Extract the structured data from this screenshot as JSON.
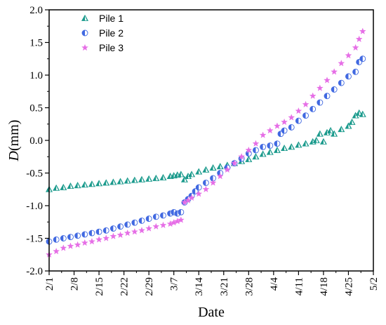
{
  "chart_data": {
    "type": "scatter",
    "title": "",
    "xlabel": "Date",
    "ylabel_italic": "D",
    "ylabel_rest": "(mm)",
    "x_tick_labels": [
      "2/1",
      "2/8",
      "2/15",
      "2/22",
      "2/29",
      "3/7",
      "3/14",
      "3/21",
      "3/28",
      "4/4",
      "4/11",
      "4/18",
      "4/25",
      "5/2"
    ],
    "x_tick_days": [
      0,
      7,
      14,
      21,
      28,
      35,
      42,
      49,
      56,
      63,
      70,
      77,
      84,
      91
    ],
    "xlim_days": [
      0,
      91
    ],
    "ylim": [
      -2.0,
      2.0
    ],
    "y_ticks": [
      "-2.0",
      "-1.5",
      "-1.0",
      "-0.5",
      "0.0",
      "0.5",
      "1.0",
      "1.5",
      "2.0"
    ],
    "legend_position": "top-left",
    "grid": false,
    "series": [
      {
        "name": "Pile 1",
        "marker": "triangle",
        "color": "#1a9a8c",
        "days": [
          0,
          2,
          4,
          6,
          8,
          10,
          12,
          14,
          16,
          18,
          20,
          22,
          24,
          26,
          28,
          30,
          32,
          34,
          35,
          36,
          37,
          38,
          39,
          40,
          42,
          44,
          46,
          48,
          50,
          52,
          54,
          56,
          58,
          60,
          62,
          64,
          66,
          68,
          70,
          72,
          74,
          75,
          76,
          77,
          78,
          79,
          80,
          82,
          84,
          85,
          86,
          87,
          88
        ],
        "values": [
          -0.75,
          -0.73,
          -0.72,
          -0.7,
          -0.69,
          -0.68,
          -0.67,
          -0.66,
          -0.65,
          -0.64,
          -0.63,
          -0.62,
          -0.61,
          -0.6,
          -0.59,
          -0.58,
          -0.57,
          -0.55,
          -0.54,
          -0.53,
          -0.52,
          -0.6,
          -0.55,
          -0.52,
          -0.48,
          -0.45,
          -0.42,
          -0.4,
          -0.38,
          -0.35,
          -0.32,
          -0.29,
          -0.25,
          -0.21,
          -0.18,
          -0.15,
          -0.12,
          -0.1,
          -0.07,
          -0.05,
          -0.02,
          0.0,
          0.1,
          -0.02,
          0.12,
          0.15,
          0.1,
          0.17,
          0.22,
          0.28,
          0.38,
          0.42,
          0.4
        ]
      },
      {
        "name": "Pile 2",
        "marker": "circle",
        "color": "#4169e1",
        "days": [
          0,
          2,
          4,
          6,
          8,
          10,
          12,
          14,
          16,
          18,
          20,
          22,
          24,
          26,
          28,
          30,
          32,
          34,
          35,
          36,
          37,
          38,
          39,
          40,
          41,
          42,
          44,
          46,
          48,
          50,
          52,
          54,
          56,
          58,
          60,
          62,
          64,
          65,
          66,
          68,
          70,
          72,
          74,
          76,
          78,
          80,
          82,
          84,
          86,
          87,
          88
        ],
        "values": [
          -1.55,
          -1.52,
          -1.5,
          -1.48,
          -1.46,
          -1.44,
          -1.42,
          -1.4,
          -1.38,
          -1.35,
          -1.32,
          -1.29,
          -1.26,
          -1.23,
          -1.2,
          -1.17,
          -1.15,
          -1.12,
          -1.1,
          -1.12,
          -1.1,
          -0.95,
          -0.9,
          -0.85,
          -0.78,
          -0.72,
          -0.65,
          -0.58,
          -0.5,
          -0.42,
          -0.35,
          -0.28,
          -0.2,
          -0.15,
          -0.1,
          -0.08,
          -0.05,
          0.1,
          0.15,
          0.2,
          0.3,
          0.38,
          0.48,
          0.58,
          0.68,
          0.78,
          0.88,
          0.98,
          1.05,
          1.2,
          1.25
        ]
      },
      {
        "name": "Pile 3",
        "marker": "star",
        "color": "#e66ee6",
        "days": [
          0,
          2,
          4,
          6,
          8,
          10,
          12,
          14,
          16,
          18,
          20,
          22,
          24,
          26,
          28,
          30,
          32,
          34,
          35,
          36,
          37,
          38,
          39,
          40,
          42,
          44,
          46,
          48,
          50,
          52,
          54,
          56,
          58,
          60,
          62,
          64,
          66,
          68,
          70,
          72,
          74,
          76,
          78,
          80,
          82,
          84,
          86,
          87,
          88
        ],
        "values": [
          -1.75,
          -1.7,
          -1.65,
          -1.62,
          -1.6,
          -1.57,
          -1.55,
          -1.52,
          -1.5,
          -1.47,
          -1.45,
          -1.42,
          -1.4,
          -1.38,
          -1.35,
          -1.32,
          -1.3,
          -1.28,
          -1.26,
          -1.24,
          -1.22,
          -0.95,
          -0.92,
          -0.88,
          -0.82,
          -0.75,
          -0.65,
          -0.55,
          -0.45,
          -0.35,
          -0.25,
          -0.15,
          -0.05,
          0.08,
          0.15,
          0.22,
          0.28,
          0.35,
          0.45,
          0.55,
          0.68,
          0.8,
          0.92,
          1.05,
          1.18,
          1.3,
          1.42,
          1.55,
          1.67
        ]
      }
    ]
  }
}
